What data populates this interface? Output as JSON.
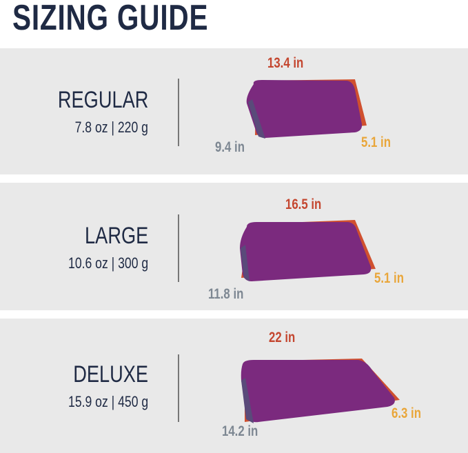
{
  "title": "SIZING GUIDE",
  "sizes": [
    {
      "name": "REGULAR",
      "weight": "7.8 oz | 220 g",
      "length": "13.4 in",
      "width": "9.4 in",
      "depth": "5.1 in"
    },
    {
      "name": "LARGE",
      "weight": "10.6 oz | 300 g",
      "length": "16.5 in",
      "width": "11.8 in",
      "depth": "5.1 in"
    },
    {
      "name": "DELUXE",
      "weight": "15.9 oz | 450 g",
      "length": "22 in",
      "width": "14.2 in",
      "depth": "6.3 in"
    }
  ],
  "colors": {
    "title": "#1f2a44",
    "length": "#c4462f",
    "width": "#7d8792",
    "depth": "#e9a63a",
    "pillow": "#7b2a7e",
    "pillow_edge": "#d0502f"
  }
}
